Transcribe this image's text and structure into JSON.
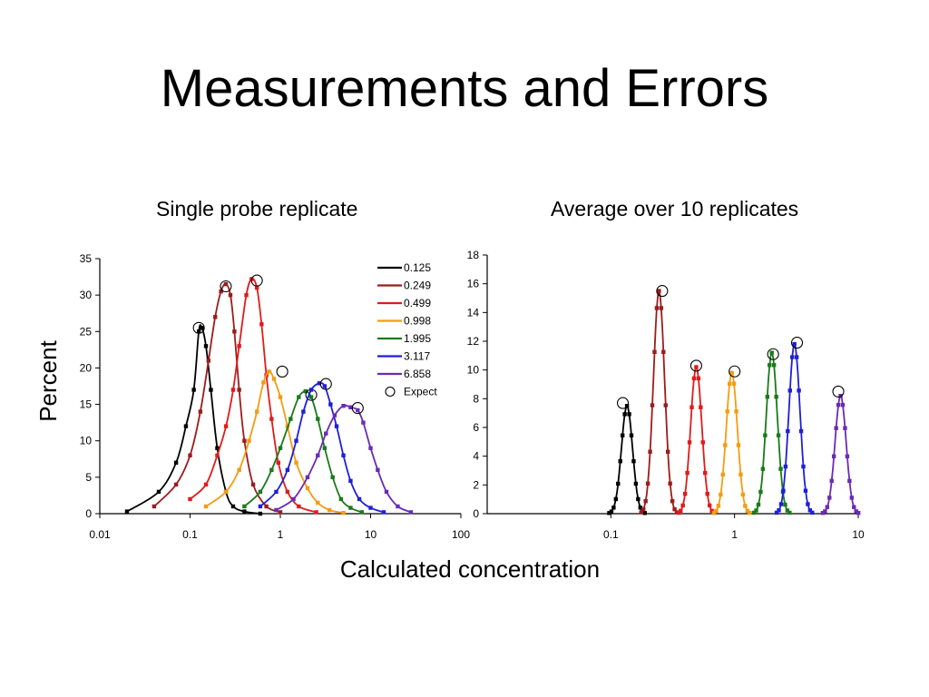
{
  "slide": {
    "title": "Measurements and Errors",
    "left_caption": "Single probe replicate",
    "right_caption": "Average over 10 replicates"
  },
  "chart_data": [
    {
      "type": "line",
      "title": "Single probe replicate",
      "xlabel": "Calculated concentration",
      "ylabel": "Percent",
      "xscale": "log",
      "xlim": [
        0.01,
        100
      ],
      "ylim": [
        0,
        35
      ],
      "xticks": [
        "0.01",
        "0.1",
        "1",
        "10",
        "100"
      ],
      "yticks": [
        "0",
        "5",
        "10",
        "15",
        "20",
        "25",
        "30",
        "35"
      ],
      "legend_position": "top-right",
      "expect_label": "Expect",
      "series": [
        {
          "name": "0.125",
          "color": "#000000",
          "expect": {
            "x": 0.125,
            "y": 25.5
          },
          "points": [
            [
              0.02,
              0.3
            ],
            [
              0.045,
              3
            ],
            [
              0.07,
              7
            ],
            [
              0.09,
              12
            ],
            [
              0.11,
              17
            ],
            [
              0.125,
              25
            ],
            [
              0.135,
              25.5
            ],
            [
              0.15,
              23
            ],
            [
              0.17,
              17
            ],
            [
              0.2,
              9
            ],
            [
              0.25,
              3
            ],
            [
              0.3,
              1
            ],
            [
              0.4,
              0.3
            ],
            [
              0.6,
              0
            ]
          ]
        },
        {
          "name": "0.249",
          "color": "#9b1c1c",
          "expect": {
            "x": 0.249,
            "y": 31.2
          },
          "points": [
            [
              0.04,
              1
            ],
            [
              0.07,
              4
            ],
            [
              0.1,
              8
            ],
            [
              0.13,
              14
            ],
            [
              0.16,
              21
            ],
            [
              0.19,
              27
            ],
            [
              0.22,
              30.5
            ],
            [
              0.249,
              31.5
            ],
            [
              0.28,
              30
            ],
            [
              0.31,
              25
            ],
            [
              0.35,
              17
            ],
            [
              0.4,
              10
            ],
            [
              0.5,
              4
            ],
            [
              0.7,
              1
            ],
            [
              1,
              0.2
            ]
          ]
        },
        {
          "name": "0.499",
          "color": "#e01b1b",
          "expect": {
            "x": 0.55,
            "y": 32
          },
          "points": [
            [
              0.1,
              2
            ],
            [
              0.15,
              4
            ],
            [
              0.2,
              8
            ],
            [
              0.25,
              12
            ],
            [
              0.3,
              17
            ],
            [
              0.35,
              23
            ],
            [
              0.42,
              30
            ],
            [
              0.48,
              32.2
            ],
            [
              0.55,
              31
            ],
            [
              0.62,
              26
            ],
            [
              0.7,
              19
            ],
            [
              0.8,
              13
            ],
            [
              0.95,
              7
            ],
            [
              1.2,
              3
            ],
            [
              1.6,
              1
            ],
            [
              2.5,
              0.2
            ]
          ]
        },
        {
          "name": "0.998",
          "color": "#f39c12",
          "expect": {
            "x": 1.05,
            "y": 19.5
          },
          "points": [
            [
              0.15,
              1
            ],
            [
              0.25,
              3
            ],
            [
              0.35,
              6
            ],
            [
              0.45,
              10
            ],
            [
              0.55,
              14
            ],
            [
              0.65,
              18
            ],
            [
              0.75,
              19.5
            ],
            [
              0.85,
              18.5
            ],
            [
              1,
              16
            ],
            [
              1.2,
              12
            ],
            [
              1.5,
              7
            ],
            [
              2,
              3.5
            ],
            [
              2.6,
              1.5
            ],
            [
              3.5,
              0.5
            ],
            [
              5,
              0.1
            ]
          ]
        },
        {
          "name": "1.995",
          "color": "#1a7a1a",
          "expect": {
            "x": 2.2,
            "y": 16.3
          },
          "points": [
            [
              0.4,
              1
            ],
            [
              0.6,
              3
            ],
            [
              0.8,
              6
            ],
            [
              1,
              9
            ],
            [
              1.3,
              13
            ],
            [
              1.6,
              16
            ],
            [
              1.9,
              16.8
            ],
            [
              2.2,
              16
            ],
            [
              2.6,
              13
            ],
            [
              3.1,
              9
            ],
            [
              3.8,
              5
            ],
            [
              4.7,
              2
            ],
            [
              6,
              0.8
            ],
            [
              8,
              0.2
            ]
          ]
        },
        {
          "name": "3.117",
          "color": "#1f1fd6",
          "expect": {
            "x": 3.2,
            "y": 17.8
          },
          "points": [
            [
              0.6,
              1
            ],
            [
              0.9,
              3
            ],
            [
              1.2,
              6
            ],
            [
              1.5,
              10
            ],
            [
              1.8,
              14
            ],
            [
              2.2,
              17
            ],
            [
              2.7,
              17.9
            ],
            [
              3.1,
              17.5
            ],
            [
              3.6,
              15
            ],
            [
              4.2,
              12
            ],
            [
              5,
              8
            ],
            [
              6,
              4.5
            ],
            [
              7.5,
              2
            ],
            [
              10,
              0.8
            ],
            [
              14,
              0.2
            ]
          ]
        },
        {
          "name": "6.858",
          "color": "#6a2bb3",
          "expect": {
            "x": 7.2,
            "y": 14.5
          },
          "points": [
            [
              0.9,
              0.5
            ],
            [
              1.4,
              2
            ],
            [
              2,
              5
            ],
            [
              2.6,
              8
            ],
            [
              3.2,
              11
            ],
            [
              4,
              13.5
            ],
            [
              5,
              14.8
            ],
            [
              6,
              14.6
            ],
            [
              7.2,
              14.2
            ],
            [
              8.3,
              12.5
            ],
            [
              10,
              9
            ],
            [
              12,
              6
            ],
            [
              15,
              3
            ],
            [
              20,
              1
            ],
            [
              28,
              0.2
            ]
          ]
        }
      ]
    },
    {
      "type": "line",
      "title": "Average over 10 replicates",
      "xscale": "log",
      "xlim": [
        0.01,
        10
      ],
      "ylim": [
        0,
        18
      ],
      "xticks": [
        "0.1",
        "1",
        "10"
      ],
      "yticks": [
        "0",
        "2",
        "4",
        "6",
        "8",
        "10",
        "12",
        "14",
        "16",
        "18"
      ],
      "series": [
        {
          "name": "0.125",
          "color": "#000000",
          "center": 0.135,
          "peak": 7.5,
          "expect": {
            "x": 0.125,
            "y": 7.7
          }
        },
        {
          "name": "0.249",
          "color": "#9b1c1c",
          "center": 0.245,
          "peak": 15.5,
          "expect": {
            "x": 0.26,
            "y": 15.5
          }
        },
        {
          "name": "0.499",
          "color": "#e01b1b",
          "center": 0.49,
          "peak": 10.2,
          "expect": {
            "x": 0.49,
            "y": 10.3
          }
        },
        {
          "name": "0.998",
          "color": "#f39c12",
          "center": 0.95,
          "peak": 9.8,
          "expect": {
            "x": 1.0,
            "y": 9.9
          }
        },
        {
          "name": "1.995",
          "color": "#1a7a1a",
          "center": 2.0,
          "peak": 11.2,
          "expect": {
            "x": 2.05,
            "y": 11.1
          }
        },
        {
          "name": "3.117",
          "color": "#1f1fd6",
          "center": 3.05,
          "peak": 11.8,
          "expect": {
            "x": 3.2,
            "y": 11.9
          }
        },
        {
          "name": "6.858",
          "color": "#6a2bb3",
          "center": 7.2,
          "peak": 8.2,
          "expect": {
            "x": 6.9,
            "y": 8.5
          }
        }
      ]
    }
  ]
}
